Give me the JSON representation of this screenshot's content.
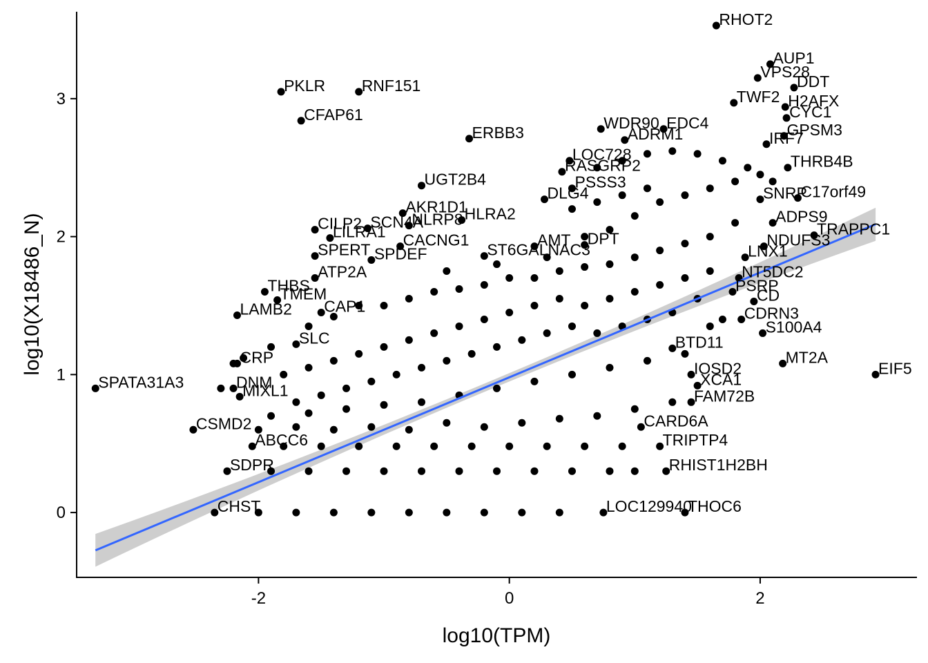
{
  "chart_data": {
    "type": "scatter",
    "xlabel": "log10(TPM)",
    "ylabel": "log10(X18486_N)",
    "xlim": [
      -3.45,
      3.25
    ],
    "ylim": [
      -0.47,
      3.63
    ],
    "x_ticks": [
      -2,
      0,
      2
    ],
    "y_ticks": [
      0,
      1,
      2,
      3
    ],
    "grid": false,
    "fit": {
      "method": "linear",
      "color": "#3366FF",
      "band_color": "#BEBEBE",
      "x_range": [
        -3.3,
        2.92
      ],
      "intercept": 0.98,
      "slope": 0.38,
      "se_at_ends": 0.12,
      "se_at_center": 0.03,
      "center_x": -0.2
    },
    "labeled_points": [
      {
        "label": "RHOT2",
        "x": 1.65,
        "y": 3.53
      },
      {
        "label": "AUP1",
        "x": 2.08,
        "y": 3.25
      },
      {
        "label": "VPS28",
        "x": 1.98,
        "y": 3.15
      },
      {
        "label": "DDT",
        "x": 2.27,
        "y": 3.08
      },
      {
        "label": "PKLR",
        "x": -1.82,
        "y": 3.05
      },
      {
        "label": "RNF151",
        "x": -1.2,
        "y": 3.05
      },
      {
        "label": "TWF2",
        "x": 1.79,
        "y": 2.97
      },
      {
        "label": "H2AFX",
        "x": 2.2,
        "y": 2.94
      },
      {
        "label": "CYC1",
        "x": 2.21,
        "y": 2.86
      },
      {
        "label": "CFAP61",
        "x": -1.66,
        "y": 2.84
      },
      {
        "label": "WDR90",
        "x": 0.73,
        "y": 2.78
      },
      {
        "label": "EDC4",
        "x": 1.23,
        "y": 2.78
      },
      {
        "label": "GPSM3",
        "x": 2.19,
        "y": 2.73
      },
      {
        "label": "ERBB3",
        "x": -0.32,
        "y": 2.71
      },
      {
        "label": "ADRM1",
        "x": 0.92,
        "y": 2.7
      },
      {
        "label": "IRF7",
        "x": 2.05,
        "y": 2.67
      },
      {
        "label": "LOC728",
        "x": 0.48,
        "y": 2.55
      },
      {
        "label": "THRB4B",
        "x": 2.22,
        "y": 2.5
      },
      {
        "label": "RASGRP2",
        "x": 0.42,
        "y": 2.47
      },
      {
        "label": "UGT2B4",
        "x": -0.7,
        "y": 2.37
      },
      {
        "label": "PSSS3",
        "x": 0.5,
        "y": 2.35
      },
      {
        "label": "DLG4",
        "x": 0.28,
        "y": 2.27
      },
      {
        "label": "C17orf49",
        "x": 2.3,
        "y": 2.28
      },
      {
        "label": "SNRP",
        "x": 2.0,
        "y": 2.27
      },
      {
        "label": "AKR1D1",
        "x": -0.85,
        "y": 2.17
      },
      {
        "label": "NLRP8",
        "x": -0.8,
        "y": 2.08
      },
      {
        "label": "HLRA2",
        "x": -0.38,
        "y": 2.12
      },
      {
        "label": "ADPS9",
        "x": 2.1,
        "y": 2.1
      },
      {
        "label": "CILP2",
        "x": -1.55,
        "y": 2.05
      },
      {
        "label": "SCN4A",
        "x": -1.13,
        "y": 2.06
      },
      {
        "label": "LILRA1",
        "x": -1.43,
        "y": 1.99
      },
      {
        "label": "TRAPPC1",
        "x": 2.43,
        "y": 2.01
      },
      {
        "label": "NDUFS3",
        "x": 2.03,
        "y": 1.93
      },
      {
        "label": "CACNG1",
        "x": -0.87,
        "y": 1.93
      },
      {
        "label": "AMT",
        "x": 0.2,
        "y": 1.93
      },
      {
        "label": "SPERT",
        "x": -1.55,
        "y": 1.86
      },
      {
        "label": "ST6GALNAC3",
        "x": -0.2,
        "y": 1.86
      },
      {
        "label": "DPT",
        "x": 0.6,
        "y": 1.94
      },
      {
        "label": "LNX1",
        "x": 1.88,
        "y": 1.85
      },
      {
        "label": "SPDEF",
        "x": -1.1,
        "y": 1.83
      },
      {
        "label": "ATP2A",
        "x": -1.55,
        "y": 1.7
      },
      {
        "label": "NT5DC2",
        "x": 1.83,
        "y": 1.7
      },
      {
        "label": "THBS",
        "x": -1.95,
        "y": 1.6
      },
      {
        "label": "TMEM",
        "x": -1.85,
        "y": 1.54
      },
      {
        "label": "PSRP",
        "x": 1.78,
        "y": 1.6
      },
      {
        "label": "CD",
        "x": 1.95,
        "y": 1.53
      },
      {
        "label": "LAMB2",
        "x": -2.17,
        "y": 1.43
      },
      {
        "label": "CAP1",
        "x": -1.5,
        "y": 1.45
      },
      {
        "label": "CDRN3",
        "x": 1.85,
        "y": 1.4
      },
      {
        "label": "S100A4",
        "x": 2.02,
        "y": 1.3
      },
      {
        "label": "SLC",
        "x": -1.7,
        "y": 1.22
      },
      {
        "label": "BTD11",
        "x": 1.3,
        "y": 1.19
      },
      {
        "label": "CRP",
        "x": -2.17,
        "y": 1.08
      },
      {
        "label": "MT2A",
        "x": 2.18,
        "y": 1.08
      },
      {
        "label": "IOSD2",
        "x": 1.45,
        "y": 1.0
      },
      {
        "label": "EIF5",
        "x": 2.92,
        "y": 1.0
      },
      {
        "label": "SPATA31A3",
        "x": -3.3,
        "y": 0.9
      },
      {
        "label": "DNM",
        "x": -2.2,
        "y": 0.9
      },
      {
        "label": "MIXL1",
        "x": -2.15,
        "y": 0.84
      },
      {
        "label": "XCA1",
        "x": 1.5,
        "y": 0.92
      },
      {
        "label": "FAM72B",
        "x": 1.45,
        "y": 0.8
      },
      {
        "label": "CSMD2",
        "x": -2.52,
        "y": 0.6
      },
      {
        "label": "CARD6A",
        "x": 1.05,
        "y": 0.62
      },
      {
        "label": "ABCC6",
        "x": -2.05,
        "y": 0.48
      },
      {
        "label": "TRIPTP4",
        "x": 1.2,
        "y": 0.48
      },
      {
        "label": "SDPR",
        "x": -2.25,
        "y": 0.3
      },
      {
        "label": "RHIST1H2BH",
        "x": 1.25,
        "y": 0.3
      },
      {
        "label": "CHST",
        "x": -2.35,
        "y": 0.0
      },
      {
        "label": "LOC129940",
        "x": 0.75,
        "y": 0.0
      },
      {
        "label": "THOC6",
        "x": 1.4,
        "y": 0.0
      }
    ],
    "unlabeled_points": [
      {
        "x": -2.2,
        "y": 1.08
      },
      {
        "x": -2.3,
        "y": 0.9
      },
      {
        "x": -2.12,
        "y": 1.12
      },
      {
        "x": -1.9,
        "y": 1.2
      },
      {
        "x": -1.6,
        "y": 1.35
      },
      {
        "x": -1.4,
        "y": 1.42
      },
      {
        "x": -1.2,
        "y": 1.5
      },
      {
        "x": -1.0,
        "y": 1.5
      },
      {
        "x": -0.8,
        "y": 1.55
      },
      {
        "x": -0.6,
        "y": 1.6
      },
      {
        "x": -0.4,
        "y": 1.62
      },
      {
        "x": -0.2,
        "y": 1.65
      },
      {
        "x": 0.0,
        "y": 1.7
      },
      {
        "x": 0.2,
        "y": 1.7
      },
      {
        "x": 0.4,
        "y": 1.75
      },
      {
        "x": 0.6,
        "y": 1.78
      },
      {
        "x": 0.8,
        "y": 1.8
      },
      {
        "x": 1.0,
        "y": 1.85
      },
      {
        "x": 1.2,
        "y": 1.9
      },
      {
        "x": 1.4,
        "y": 1.95
      },
      {
        "x": 1.6,
        "y": 2.0
      },
      {
        "x": 1.8,
        "y": 2.1
      },
      {
        "x": -1.8,
        "y": 1.0
      },
      {
        "x": -1.6,
        "y": 1.05
      },
      {
        "x": -1.4,
        "y": 1.1
      },
      {
        "x": -1.2,
        "y": 1.15
      },
      {
        "x": -1.0,
        "y": 1.2
      },
      {
        "x": -0.8,
        "y": 1.25
      },
      {
        "x": -0.6,
        "y": 1.3
      },
      {
        "x": -0.4,
        "y": 1.35
      },
      {
        "x": -0.2,
        "y": 1.4
      },
      {
        "x": 0.0,
        "y": 1.45
      },
      {
        "x": 0.2,
        "y": 1.5
      },
      {
        "x": 0.4,
        "y": 1.55
      },
      {
        "x": 0.6,
        "y": 1.5
      },
      {
        "x": 0.8,
        "y": 1.55
      },
      {
        "x": 1.0,
        "y": 1.6
      },
      {
        "x": 1.2,
        "y": 1.65
      },
      {
        "x": 1.4,
        "y": 1.7
      },
      {
        "x": 1.6,
        "y": 1.75
      },
      {
        "x": -1.7,
        "y": 0.8
      },
      {
        "x": -1.5,
        "y": 0.85
      },
      {
        "x": -1.3,
        "y": 0.9
      },
      {
        "x": -1.1,
        "y": 0.95
      },
      {
        "x": -0.9,
        "y": 1.0
      },
      {
        "x": -0.7,
        "y": 1.05
      },
      {
        "x": -0.5,
        "y": 1.1
      },
      {
        "x": -0.3,
        "y": 1.15
      },
      {
        "x": -0.1,
        "y": 1.2
      },
      {
        "x": 0.1,
        "y": 1.25
      },
      {
        "x": 0.3,
        "y": 1.3
      },
      {
        "x": 0.5,
        "y": 1.35
      },
      {
        "x": 0.7,
        "y": 1.3
      },
      {
        "x": 0.9,
        "y": 1.35
      },
      {
        "x": 1.1,
        "y": 1.4
      },
      {
        "x": 1.3,
        "y": 1.45
      },
      {
        "x": -1.9,
        "y": 0.7
      },
      {
        "x": -1.6,
        "y": 0.72
      },
      {
        "x": -1.3,
        "y": 0.75
      },
      {
        "x": -1.0,
        "y": 0.78
      },
      {
        "x": -0.7,
        "y": 0.8
      },
      {
        "x": -0.4,
        "y": 0.85
      },
      {
        "x": -0.1,
        "y": 0.9
      },
      {
        "x": 0.2,
        "y": 0.95
      },
      {
        "x": 0.5,
        "y": 1.0
      },
      {
        "x": 0.8,
        "y": 1.05
      },
      {
        "x": 1.1,
        "y": 1.1
      },
      {
        "x": 1.4,
        "y": 1.15
      },
      {
        "x": 0.6,
        "y": 2.0
      },
      {
        "x": 0.8,
        "y": 2.05
      },
      {
        "x": 1.0,
        "y": 2.15
      },
      {
        "x": 1.2,
        "y": 2.25
      },
      {
        "x": 1.4,
        "y": 2.3
      },
      {
        "x": 1.6,
        "y": 2.35
      },
      {
        "x": 1.8,
        "y": 2.4
      },
      {
        "x": 2.0,
        "y": 2.45
      },
      {
        "x": 0.7,
        "y": 2.5
      },
      {
        "x": 0.9,
        "y": 2.55
      },
      {
        "x": 1.1,
        "y": 2.6
      },
      {
        "x": 1.3,
        "y": 2.62
      },
      {
        "x": 1.5,
        "y": 2.6
      },
      {
        "x": 1.7,
        "y": 2.55
      },
      {
        "x": 1.9,
        "y": 2.5
      },
      {
        "x": 2.1,
        "y": 2.4
      },
      {
        "x": 0.5,
        "y": 2.2
      },
      {
        "x": 0.7,
        "y": 2.25
      },
      {
        "x": 0.9,
        "y": 2.3
      },
      {
        "x": 1.1,
        "y": 2.35
      },
      {
        "x": -1.8,
        "y": 0.48
      },
      {
        "x": -1.5,
        "y": 0.48
      },
      {
        "x": -1.2,
        "y": 0.48
      },
      {
        "x": -0.9,
        "y": 0.48
      },
      {
        "x": -0.6,
        "y": 0.48
      },
      {
        "x": -0.3,
        "y": 0.48
      },
      {
        "x": 0.0,
        "y": 0.48
      },
      {
        "x": 0.3,
        "y": 0.48
      },
      {
        "x": 0.6,
        "y": 0.48
      },
      {
        "x": 0.9,
        "y": 0.48
      },
      {
        "x": -1.9,
        "y": 0.3
      },
      {
        "x": -1.6,
        "y": 0.3
      },
      {
        "x": -1.3,
        "y": 0.3
      },
      {
        "x": -1.0,
        "y": 0.3
      },
      {
        "x": -0.7,
        "y": 0.3
      },
      {
        "x": -0.4,
        "y": 0.3
      },
      {
        "x": -0.1,
        "y": 0.3
      },
      {
        "x": 0.2,
        "y": 0.3
      },
      {
        "x": 0.5,
        "y": 0.3
      },
      {
        "x": 0.8,
        "y": 0.3
      },
      {
        "x": 1.0,
        "y": 0.3
      },
      {
        "x": -2.0,
        "y": 0.0
      },
      {
        "x": -1.7,
        "y": 0.0
      },
      {
        "x": -1.4,
        "y": 0.0
      },
      {
        "x": -1.1,
        "y": 0.0
      },
      {
        "x": -0.8,
        "y": 0.0
      },
      {
        "x": -0.5,
        "y": 0.0
      },
      {
        "x": -0.2,
        "y": 0.0
      },
      {
        "x": 0.1,
        "y": 0.0
      },
      {
        "x": 0.4,
        "y": 0.0
      },
      {
        "x": -2.0,
        "y": 0.6
      },
      {
        "x": -1.7,
        "y": 0.62
      },
      {
        "x": -1.4,
        "y": 0.6
      },
      {
        "x": -1.1,
        "y": 0.62
      },
      {
        "x": -0.8,
        "y": 0.6
      },
      {
        "x": -0.5,
        "y": 0.65
      },
      {
        "x": -0.2,
        "y": 0.62
      },
      {
        "x": 0.1,
        "y": 0.65
      },
      {
        "x": 0.4,
        "y": 0.68
      },
      {
        "x": 0.7,
        "y": 0.7
      },
      {
        "x": 1.0,
        "y": 0.75
      },
      {
        "x": 1.3,
        "y": 0.8
      },
      {
        "x": 1.6,
        "y": 1.35
      },
      {
        "x": 1.7,
        "y": 1.4
      },
      {
        "x": 1.5,
        "y": 1.55
      },
      {
        "x": 0.3,
        "y": 1.85
      },
      {
        "x": -0.1,
        "y": 1.8
      },
      {
        "x": -0.5,
        "y": 1.75
      }
    ]
  }
}
